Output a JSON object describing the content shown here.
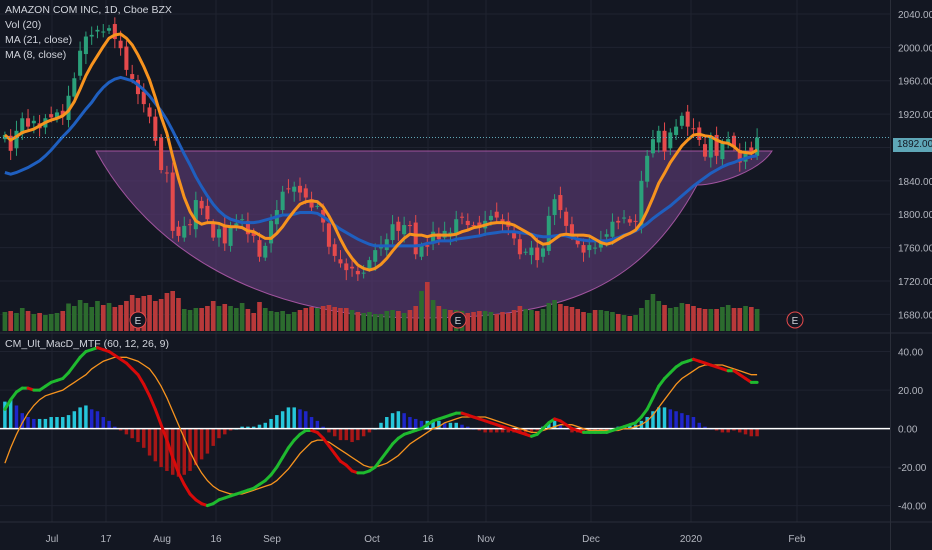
{
  "header": {
    "symbol_line": "AMAZON COM INC, 1D, Cboe BZX",
    "vol_label": "Vol (20)",
    "ma1_label": "MA (21, close)",
    "ma2_label": "MA (8, close)",
    "macd_label": "CM_Ult_MacD_MTF (60, 12, 26, 9)"
  },
  "last_price_label": "1892.00",
  "earnings_marker": "E",
  "colors": {
    "background": "#131722",
    "up_candle": "#2ba07a",
    "down_candle": "#e54a4c",
    "volume_up": "#2c6b2e",
    "volume_down": "#b8393a",
    "ma21": "#1f5fbf",
    "ma8": "#f7931e",
    "cup_fill": "#5c3a75",
    "macd_up": "#1fba2f",
    "macd_down": "#d80a0a",
    "signal": "#f7931e",
    "hist_pos_light": "#26c6da",
    "hist_pos_dark": "#1f26c9",
    "hist_neg": "#a81717",
    "price_line": "#5fa7b7"
  },
  "chart_data": [
    {
      "type": "candlestick",
      "title": "AMAZON COM INC, 1D, Cboe BZX",
      "x_ticks": [
        "Jul",
        "17",
        "Aug",
        "16",
        "Sep",
        "Oct",
        "16",
        "Nov",
        "Dec",
        "2020",
        "Feb"
      ],
      "y_ticks": [
        1680,
        1720,
        1760,
        1800,
        1840,
        1880,
        1920,
        1960,
        2000,
        2040
      ],
      "y_range": [
        1660,
        2052
      ],
      "last_price": 1892.0,
      "earnings_markers": [
        "Jul 25",
        "Oct 24",
        "Jan 30"
      ],
      "closes": [
        1895,
        1876,
        1900,
        1915,
        1905,
        1912,
        1903,
        1915,
        1916,
        1922,
        1918,
        1942,
        1963,
        1996,
        2013,
        2015,
        2021,
        2019,
        2023,
        2010,
        1999,
        1973,
        1962,
        1944,
        1932,
        1917,
        1888,
        1853,
        1849,
        1780,
        1774,
        1786,
        1787,
        1817,
        1807,
        1794,
        1772,
        1782,
        1765,
        1784,
        1789,
        1794,
        1776,
        1774,
        1749,
        1762,
        1792,
        1805,
        1827,
        1830,
        1833,
        1826,
        1820,
        1808,
        1810,
        1790,
        1761,
        1750,
        1741,
        1733,
        1735,
        1728,
        1730,
        1745,
        1757,
        1762,
        1770,
        1788,
        1780,
        1787,
        1786,
        1752,
        1762,
        1761,
        1779,
        1770,
        1780,
        1778,
        1794,
        1796,
        1787,
        1786,
        1786,
        1792,
        1798,
        1796,
        1790,
        1785,
        1771,
        1752,
        1755,
        1760,
        1745,
        1759,
        1798,
        1818,
        1805,
        1786,
        1775,
        1764,
        1754,
        1763,
        1760,
        1769,
        1776,
        1791,
        1790,
        1796,
        1790,
        1791,
        1840,
        1870,
        1890,
        1900,
        1875,
        1898,
        1905,
        1918,
        1905,
        1902,
        1889,
        1869,
        1892,
        1870,
        1885,
        1890,
        1880,
        1862,
        1875,
        1872,
        1892
      ],
      "series": [
        {
          "name": "MA (21, close)",
          "values": [
            1850,
            1848,
            1850,
            1853,
            1856,
            1860,
            1864,
            1870,
            1877,
            1885,
            1893,
            1900,
            1908,
            1917,
            1926,
            1934,
            1944,
            1952,
            1958,
            1962,
            1964,
            1962,
            1960,
            1955,
            1949,
            1942,
            1933,
            1924,
            1913,
            1900,
            1886,
            1872,
            1859,
            1845,
            1833,
            1822,
            1812,
            1804,
            1798,
            1794,
            1792,
            1790,
            1790,
            1790,
            1791,
            1793,
            1795,
            1797,
            1799,
            1799,
            1800,
            1802,
            1802,
            1802,
            1801,
            1797,
            1792,
            1787,
            1782,
            1778,
            1774,
            1770,
            1767,
            1764,
            1762,
            1762,
            1762,
            1762,
            1762,
            1762,
            1762,
            1762,
            1763,
            1765,
            1766,
            1768,
            1768,
            1768,
            1770,
            1771,
            1772,
            1773,
            1774,
            1776,
            1777,
            1778,
            1779,
            1779,
            1779,
            1778,
            1777,
            1776,
            1774,
            1773,
            1773,
            1774,
            1775,
            1774,
            1772,
            1770,
            1769,
            1768,
            1768,
            1768,
            1768,
            1770,
            1772,
            1775,
            1777,
            1780,
            1784,
            1789,
            1795,
            1800,
            1805,
            1810,
            1816,
            1822,
            1828,
            1834,
            1839,
            1844,
            1849,
            1853,
            1857,
            1860,
            1862,
            1865,
            1867,
            1869,
            1870
          ]
        },
        {
          "name": "MA (8, close)",
          "values": [
            1895,
            1889,
            1893,
            1898,
            1900,
            1902,
            1906,
            1910,
            1913,
            1915,
            1918,
            1924,
            1935,
            1950,
            1966,
            1979,
            1990,
            2001,
            2011,
            2015,
            2016,
            2011,
            2003,
            1991,
            1977,
            1961,
            1940,
            1917,
            1897,
            1869,
            1843,
            1820,
            1803,
            1792,
            1788,
            1790,
            1790,
            1789,
            1786,
            1785,
            1785,
            1784,
            1780,
            1779,
            1775,
            1771,
            1771,
            1777,
            1785,
            1795,
            1804,
            1812,
            1815,
            1816,
            1815,
            1809,
            1798,
            1785,
            1770,
            1757,
            1747,
            1739,
            1735,
            1733,
            1735,
            1740,
            1747,
            1756,
            1764,
            1771,
            1776,
            1775,
            1775,
            1773,
            1775,
            1775,
            1775,
            1775,
            1776,
            1779,
            1781,
            1784,
            1785,
            1787,
            1789,
            1790,
            1790,
            1789,
            1787,
            1783,
            1779,
            1775,
            1768,
            1764,
            1765,
            1770,
            1775,
            1776,
            1775,
            1775,
            1775,
            1774,
            1770,
            1766,
            1764,
            1766,
            1770,
            1774,
            1777,
            1781,
            1790,
            1804,
            1820,
            1837,
            1849,
            1862,
            1872,
            1882,
            1889,
            1895,
            1896,
            1894,
            1893,
            1889,
            1886,
            1885,
            1881,
            1875,
            1874,
            1873,
            1877
          ]
        }
      ]
    },
    {
      "type": "bar",
      "title": "Vol (20)",
      "y_range": [
        0,
        1
      ],
      "values": [
        0.38,
        0.4,
        0.36,
        0.46,
        0.4,
        0.34,
        0.36,
        0.32,
        0.34,
        0.36,
        0.4,
        0.55,
        0.5,
        0.62,
        0.56,
        0.48,
        0.6,
        0.52,
        0.56,
        0.48,
        0.52,
        0.6,
        0.72,
        0.66,
        0.7,
        0.72,
        0.6,
        0.64,
        0.76,
        0.8,
        0.66,
        0.44,
        0.42,
        0.46,
        0.46,
        0.5,
        0.6,
        0.5,
        0.54,
        0.5,
        0.46,
        0.56,
        0.44,
        0.36,
        0.58,
        0.46,
        0.4,
        0.38,
        0.4,
        0.34,
        0.38,
        0.42,
        0.46,
        0.48,
        0.46,
        0.5,
        0.52,
        0.48,
        0.46,
        0.46,
        0.42,
        0.38,
        0.36,
        0.38,
        0.34,
        0.34,
        0.4,
        0.42,
        0.4,
        0.36,
        0.42,
        0.5,
        0.8,
        0.98,
        0.62,
        0.5,
        0.44,
        0.42,
        0.42,
        0.4,
        0.36,
        0.38,
        0.4,
        0.4,
        0.38,
        0.34,
        0.38,
        0.36,
        0.42,
        0.5,
        0.44,
        0.42,
        0.4,
        0.44,
        0.56,
        0.62,
        0.54,
        0.5,
        0.48,
        0.44,
        0.38,
        0.36,
        0.42,
        0.42,
        0.4,
        0.38,
        0.34,
        0.32,
        0.3,
        0.32,
        0.46,
        0.62,
        0.74,
        0.6,
        0.52,
        0.46,
        0.48,
        0.56,
        0.54,
        0.5,
        0.46,
        0.44,
        0.44,
        0.44,
        0.48,
        0.52,
        0.46,
        0.46,
        0.5,
        0.48,
        0.44
      ],
      "up_down": [
        1,
        0,
        1,
        1,
        0,
        1,
        0,
        1,
        1,
        1,
        0,
        1,
        1,
        1,
        1,
        1,
        1,
        0,
        1,
        0,
        0,
        0,
        0,
        0,
        0,
        0,
        0,
        0,
        0,
        0,
        0,
        1,
        1,
        1,
        0,
        0,
        0,
        1,
        0,
        1,
        1,
        1,
        0,
        0,
        0,
        1,
        1,
        1,
        1,
        1,
        1,
        0,
        0,
        0,
        1,
        0,
        0,
        0,
        0,
        0,
        1,
        0,
        1,
        1,
        1,
        1,
        1,
        1,
        0,
        1,
        0,
        0,
        1,
        0,
        1,
        0,
        1,
        0,
        1,
        1,
        0,
        0,
        0,
        1,
        1,
        0,
        0,
        0,
        0,
        0,
        1,
        1,
        0,
        1,
        1,
        1,
        0,
        0,
        0,
        0,
        0,
        1,
        0,
        1,
        1,
        1,
        0,
        1,
        0,
        1,
        1,
        1,
        1,
        1,
        0,
        1,
        1,
        1,
        0,
        0,
        0,
        0,
        1,
        0,
        1,
        1,
        0,
        0,
        1,
        0,
        1
      ]
    },
    {
      "type": "line",
      "title": "CM_Ult_MacD_MTF (60, 12, 26, 9)",
      "y_ticks": [
        40,
        20,
        0,
        -20,
        -40
      ],
      "y_range": [
        -48,
        46
      ],
      "series": [
        {
          "name": "MACD",
          "values": [
            10,
            15,
            19,
            21,
            21,
            20,
            20,
            22,
            24,
            25,
            26,
            29,
            33,
            37,
            40,
            41,
            42,
            41,
            40,
            38,
            36,
            34,
            31,
            28,
            23,
            17,
            10,
            2,
            -6,
            -15,
            -23,
            -29,
            -34,
            -37,
            -39,
            -40,
            -39,
            -37,
            -36,
            -35,
            -34,
            -33,
            -32,
            -31,
            -29,
            -27,
            -24,
            -20,
            -15,
            -10,
            -6,
            -3,
            -1,
            -1,
            -2,
            -5,
            -9,
            -13,
            -17,
            -19,
            -22,
            -23,
            -23,
            -22,
            -20,
            -16,
            -12,
            -8,
            -5,
            -3,
            -2,
            -1,
            0,
            2,
            4,
            5,
            6,
            7,
            8,
            8,
            7,
            6,
            5,
            4,
            3,
            2,
            1,
            0,
            -1,
            -2,
            -3,
            -4,
            -3,
            0,
            3,
            5,
            4,
            2,
            0,
            -1,
            -2,
            -2,
            -2,
            -2,
            -2,
            -1,
            0,
            1,
            2,
            3,
            6,
            10,
            16,
            22,
            26,
            29,
            32,
            34,
            35,
            36,
            35,
            34,
            33,
            32,
            31,
            30,
            30,
            28,
            26,
            24,
            24
          ],
          "color_by_direction": true
        },
        {
          "name": "Signal",
          "values": [
            -18,
            -10,
            -3,
            3,
            8,
            12,
            15,
            17,
            18,
            19,
            20,
            22,
            24,
            26,
            28,
            31,
            33,
            35,
            36,
            37,
            37,
            37,
            36,
            35,
            33,
            31,
            27,
            22,
            16,
            9,
            2,
            -5,
            -12,
            -18,
            -23,
            -27,
            -30,
            -32,
            -33,
            -34,
            -34,
            -34,
            -33,
            -32,
            -31,
            -30,
            -29,
            -27,
            -24,
            -21,
            -17,
            -13,
            -10,
            -7,
            -6,
            -6,
            -7,
            -9,
            -11,
            -13,
            -15,
            -17,
            -19,
            -20,
            -20,
            -19,
            -18,
            -16,
            -14,
            -11,
            -8,
            -6,
            -4,
            -2,
            0,
            1,
            3,
            4,
            5,
            6,
            6,
            6,
            6,
            6,
            5,
            4,
            3,
            2,
            1,
            0,
            -1,
            -2,
            -2,
            -1,
            0,
            1,
            2,
            2,
            2,
            1,
            0,
            -1,
            -1,
            -1,
            -1,
            -1,
            -1,
            0,
            0,
            1,
            2,
            4,
            7,
            11,
            15,
            19,
            23,
            26,
            28,
            30,
            32,
            33,
            33,
            33,
            33,
            32,
            31,
            30,
            29,
            28,
            28
          ]
        },
        {
          "name": "Histogram",
          "values": [
            14,
            15,
            12,
            8,
            6,
            5,
            5,
            5,
            6,
            6,
            6,
            7,
            9,
            11,
            12,
            10,
            9,
            6,
            4,
            1,
            -1,
            -3,
            -5,
            -7,
            -10,
            -14,
            -17,
            -20,
            -22,
            -24,
            -25,
            -24,
            -22,
            -19,
            -16,
            -13,
            -9,
            -5,
            -3,
            -1,
            0,
            1,
            1,
            1,
            2,
            3,
            5,
            7,
            9,
            11,
            11,
            10,
            9,
            6,
            4,
            1,
            -2,
            -4,
            -6,
            -6,
            -7,
            -6,
            -4,
            -2,
            0,
            3,
            6,
            8,
            9,
            8,
            6,
            5,
            4,
            4,
            4,
            4,
            3,
            3,
            3,
            2,
            1,
            0,
            -1,
            -2,
            -2,
            -2,
            -2,
            -2,
            -2,
            -2,
            -2,
            -2,
            -1,
            1,
            3,
            4,
            2,
            0,
            -2,
            -2,
            -2,
            -1,
            -1,
            -1,
            -1,
            0,
            1,
            1,
            2,
            2,
            4,
            6,
            9,
            11,
            11,
            10,
            9,
            8,
            7,
            6,
            3,
            1,
            0,
            -1,
            -2,
            -2,
            -1,
            -2,
            -3,
            -4,
            -4
          ]
        }
      ]
    }
  ]
}
